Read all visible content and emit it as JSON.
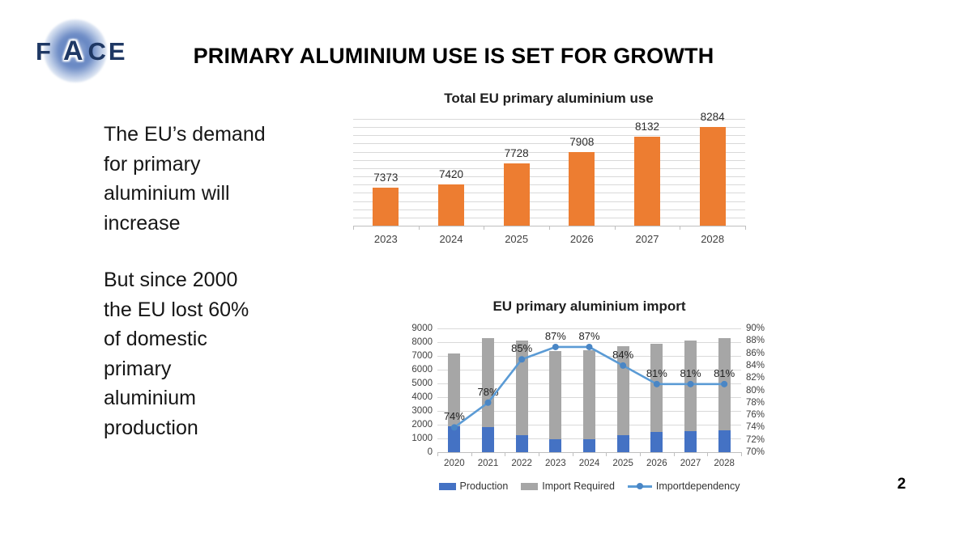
{
  "slide": {
    "title": "PRIMARY ALUMINIUM USE IS SET FOR GROWTH",
    "page_number": "2",
    "logo": {
      "letter_f": "F",
      "letter_a": "A",
      "letters_ce": "CE"
    },
    "left_text_block_1": "The EU’s demand\nfor primary\naluminium will\nincrease",
    "left_text_block_2": "But since 2000\nthe EU lost 60%\nof domestic\nprimary\naluminium\nproduction"
  },
  "colors": {
    "bar_orange": "#ED7D31",
    "bar_blue": "#4472C4",
    "bar_gray": "#A6A6A6",
    "line_blue": "#5B9BD5",
    "marker_blue": "#4A86C5",
    "gridline": "#D9D9D9",
    "axis_line": "#BFBFBF",
    "logo_navy": "#1F3864"
  },
  "chart_data": [
    {
      "type": "bar",
      "title": "Total EU primary aluminium use",
      "categories": [
        "2023",
        "2024",
        "2025",
        "2026",
        "2027",
        "2028"
      ],
      "values": [
        7373,
        7420,
        7728,
        7908,
        8132,
        8284
      ],
      "data_labels": [
        "7373",
        "7420",
        "7728",
        "7908",
        "8132",
        "8284"
      ],
      "ylim": [
        6800,
        8400
      ],
      "grid_intervals": 13,
      "bar_color": "#ED7D31",
      "legend": "none",
      "y_axis_labels": "hidden"
    },
    {
      "type": "stacked-bar-line-combo",
      "title": "EU primary aluminium import",
      "categories": [
        "2020",
        "2021",
        "2022",
        "2023",
        "2024",
        "2025",
        "2026",
        "2027",
        "2028"
      ],
      "series": [
        {
          "name": "Production",
          "type": "stacked-bar",
          "color": "#4472C4",
          "values": [
            1870,
            1830,
            1220,
            960,
            960,
            1240,
            1500,
            1550,
            1574
          ]
        },
        {
          "name": "Import Required",
          "type": "stacked-bar",
          "color": "#A6A6A6",
          "values": [
            5330,
            6470,
            6880,
            6413,
            6460,
            6488,
            6408,
            6582,
            6710
          ]
        },
        {
          "name": "Importdependency",
          "type": "line",
          "color": "#5B9BD5",
          "axis": "right",
          "values": [
            74,
            78,
            85,
            87,
            87,
            84,
            81,
            81,
            81
          ],
          "point_labels": [
            "74%",
            "78%",
            "85%",
            "87%",
            "87%",
            "84%",
            "81%",
            "81%",
            "81%"
          ]
        }
      ],
      "left_axis": {
        "min": 0,
        "max": 9000,
        "ticks": [
          "9000",
          "8000",
          "7000",
          "6000",
          "5000",
          "4000",
          "3000",
          "2000",
          "1000",
          "0"
        ]
      },
      "right_axis": {
        "min": 70,
        "max": 90,
        "ticks": [
          "90%",
          "88%",
          "86%",
          "84%",
          "82%",
          "80%",
          "78%",
          "76%",
          "74%",
          "72%",
          "70%"
        ]
      },
      "legend_position": "bottom"
    }
  ]
}
